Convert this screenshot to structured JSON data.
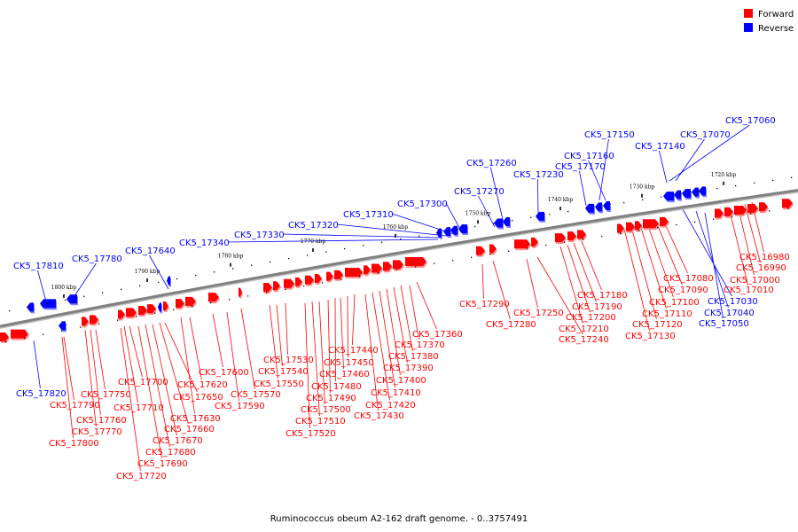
{
  "legend": [
    {
      "label": "Forward",
      "color": "#ff0000"
    },
    {
      "label": "Reverse",
      "color": "#0000ff"
    }
  ],
  "caption": "Ruminococcus obeum A2-162 draft genome. - 0..3757491",
  "colors": {
    "forward": "#ff0000",
    "reverse": "#0000ff",
    "backbone": "#808080"
  },
  "tick_labels": [
    "1800 kbp",
    "1790 kbp",
    "1780 kbp",
    "1770 kbp",
    "1760 kbp",
    "1750 kbp",
    "1740 kbp",
    "1730 kbp",
    "1720 kbp"
  ],
  "reverse_genes": [
    "CK5_17060",
    "CK5_17070",
    "CK5_17140",
    "CK5_17150",
    "CK5_17160",
    "CK5_17170",
    "CK5_17230",
    "CK5_17260",
    "CK5_17270",
    "CK5_17300",
    "CK5_17310",
    "CK5_17320",
    "CK5_17330",
    "CK5_17340",
    "CK5_17640",
    "CK5_17780",
    "CK5_17810",
    "CK5_17820",
    "CK5_17030",
    "CK5_17040",
    "CK5_17050"
  ],
  "forward_genes": [
    "CK5_16980",
    "CK5_16990",
    "CK5_17000",
    "CK5_17010",
    "CK5_17080",
    "CK5_17090",
    "CK5_17100",
    "CK5_17110",
    "CK5_17120",
    "CK5_17130",
    "CK5_17180",
    "CK5_17190",
    "CK5_17200",
    "CK5_17210",
    "CK5_17240",
    "CK5_17250",
    "CK5_17280",
    "CK5_17290",
    "CK5_17360",
    "CK5_17370",
    "CK5_17380",
    "CK5_17390",
    "CK5_17400",
    "CK5_17410",
    "CK5_17420",
    "CK5_17430",
    "CK5_17440",
    "CK5_17450",
    "CK5_17460",
    "CK5_17480",
    "CK5_17490",
    "CK5_17500",
    "CK5_17510",
    "CK5_17520",
    "CK5_17530",
    "CK5_17540",
    "CK5_17550",
    "CK5_17570",
    "CK5_17590",
    "CK5_17600",
    "CK5_17620",
    "CK5_17630",
    "CK5_17650",
    "CK5_17660",
    "CK5_17670",
    "CK5_17680",
    "CK5_17690",
    "CK5_17700",
    "CK5_17710",
    "CK5_17720",
    "CK5_17750",
    "CK5_17760",
    "CK5_17770",
    "CK5_17790",
    "CK5_17800"
  ]
}
